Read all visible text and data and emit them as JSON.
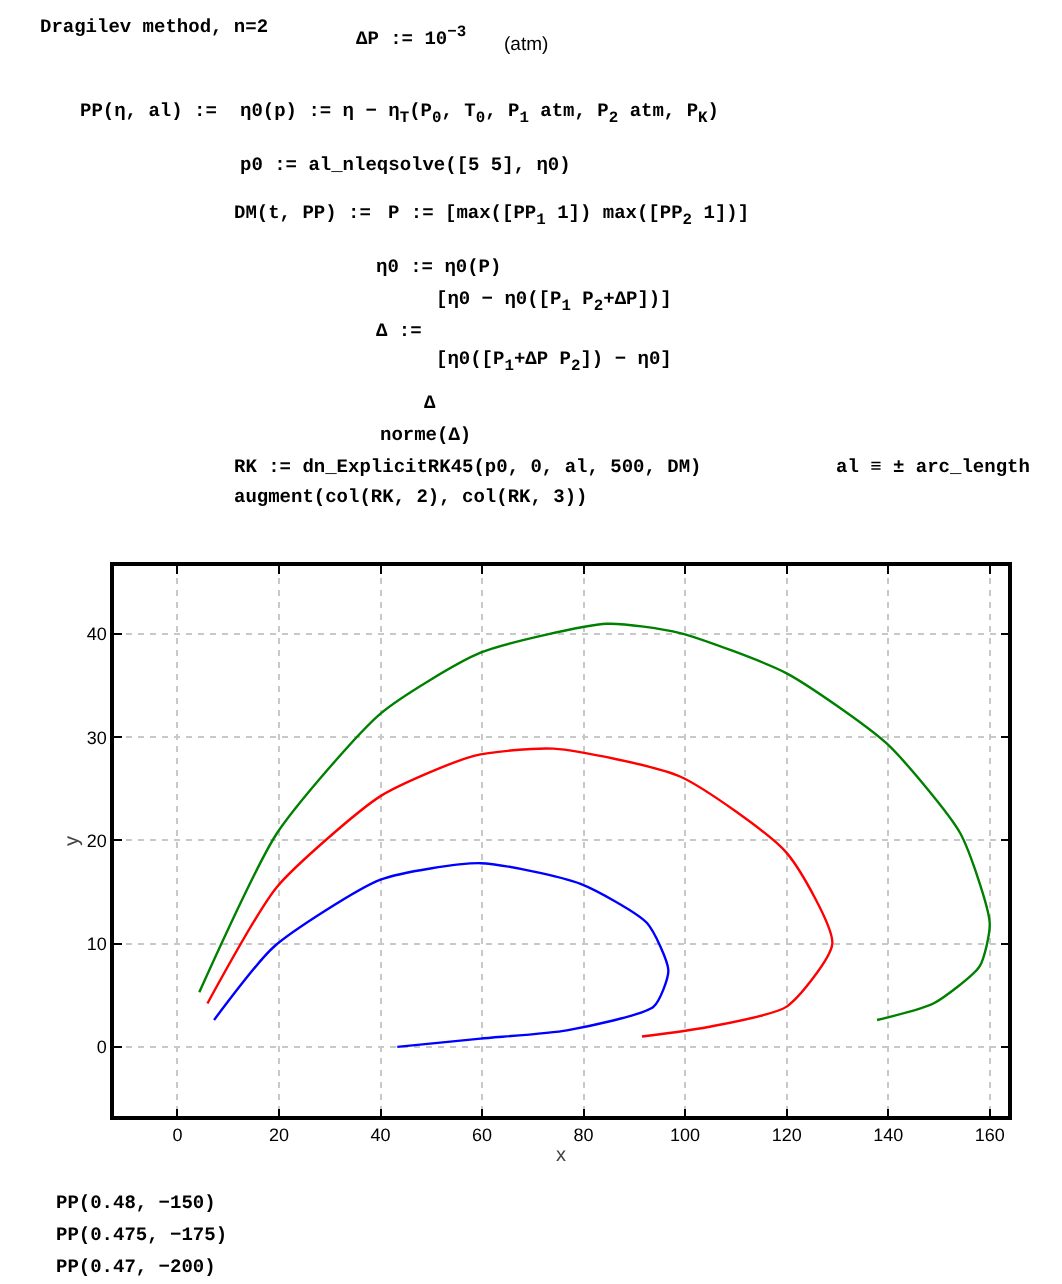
{
  "chart_data": {
    "type": "line",
    "xlabel": "x",
    "ylabel": "y",
    "annotations": [
      "Dragilev method, n=2",
      "ΔP := 10$^{−3}$",
      "(atm)",
      "PP(η, al) :=",
      "η0(p) := η − η$_{T}$(P$_{0}$, T$_{0}$, P$_{1}$ atm, P$_{2}$ atm, P$_{K}$)",
      "p0 := al_nleqsolve([5 5], η0)",
      "DM(t, PP) :=",
      "P := [max([PP$_{1}$ 1]) max([PP$_{2}$ 1])]",
      "η0 := η0(P)",
      "Δ :=",
      "[η0 − η0([P$_{1}$ P$_{2}$+ΔP])]",
      "[η0([P$_{1}$+ΔP P$_{2}$]) − η0]",
      "Δ",
      "norme(Δ)",
      "RK := dn_ExplicitRK45(p0, 0, al, 500, DM)",
      "al ≡ ± arc_length",
      "augment(col(RK, 2), col(RK, 3))",
      "PP(0.48, −150)",
      "PP(0.475, −175)",
      "PP(0.47, −200)"
    ],
    "series": [
      {
        "color": "#0000ff",
        "x": [
          7.2,
          19,
          40,
          59.7,
          79.4,
          92.5,
          96.7,
          93.8,
          76.7,
          59.7,
          43.3
        ],
        "values": [
          2.6,
          9.7,
          16.2,
          17.8,
          15.8,
          12,
          7.4,
          3.9,
          1.6,
          0.8,
          0
        ]
      },
      {
        "color": "#ff0000",
        "x": [
          5.9,
          19.6,
          40,
          58.4,
          74.1,
          99,
          120,
          129,
          120,
          104.3,
          91.5
        ],
        "values": [
          4.2,
          15.5,
          24.3,
          28.2,
          28.9,
          26.2,
          18.8,
          10,
          3.9,
          1.9,
          1.0
        ]
      },
      {
        "color": "#008000",
        "x": [
          4.3,
          19.6,
          40,
          59.7,
          84.6,
          99,
          120,
          139.7,
          154.2,
          160,
          158,
          148.9,
          137.8
        ],
        "values": [
          5.3,
          20.7,
          32.3,
          38.2,
          41,
          40.1,
          36.2,
          29.4,
          20.7,
          12,
          7.8,
          4.2,
          2.6
        ]
      }
    ],
    "xlim": [
      -12.5,
      163.6
    ],
    "xticks": [
      0,
      20,
      40,
      60,
      80,
      100,
      120,
      140,
      160
    ],
    "ylim": [
      -6.7,
      46.6
    ],
    "yticks": [
      0,
      10,
      20,
      30,
      40
    ],
    "grid": true
  }
}
